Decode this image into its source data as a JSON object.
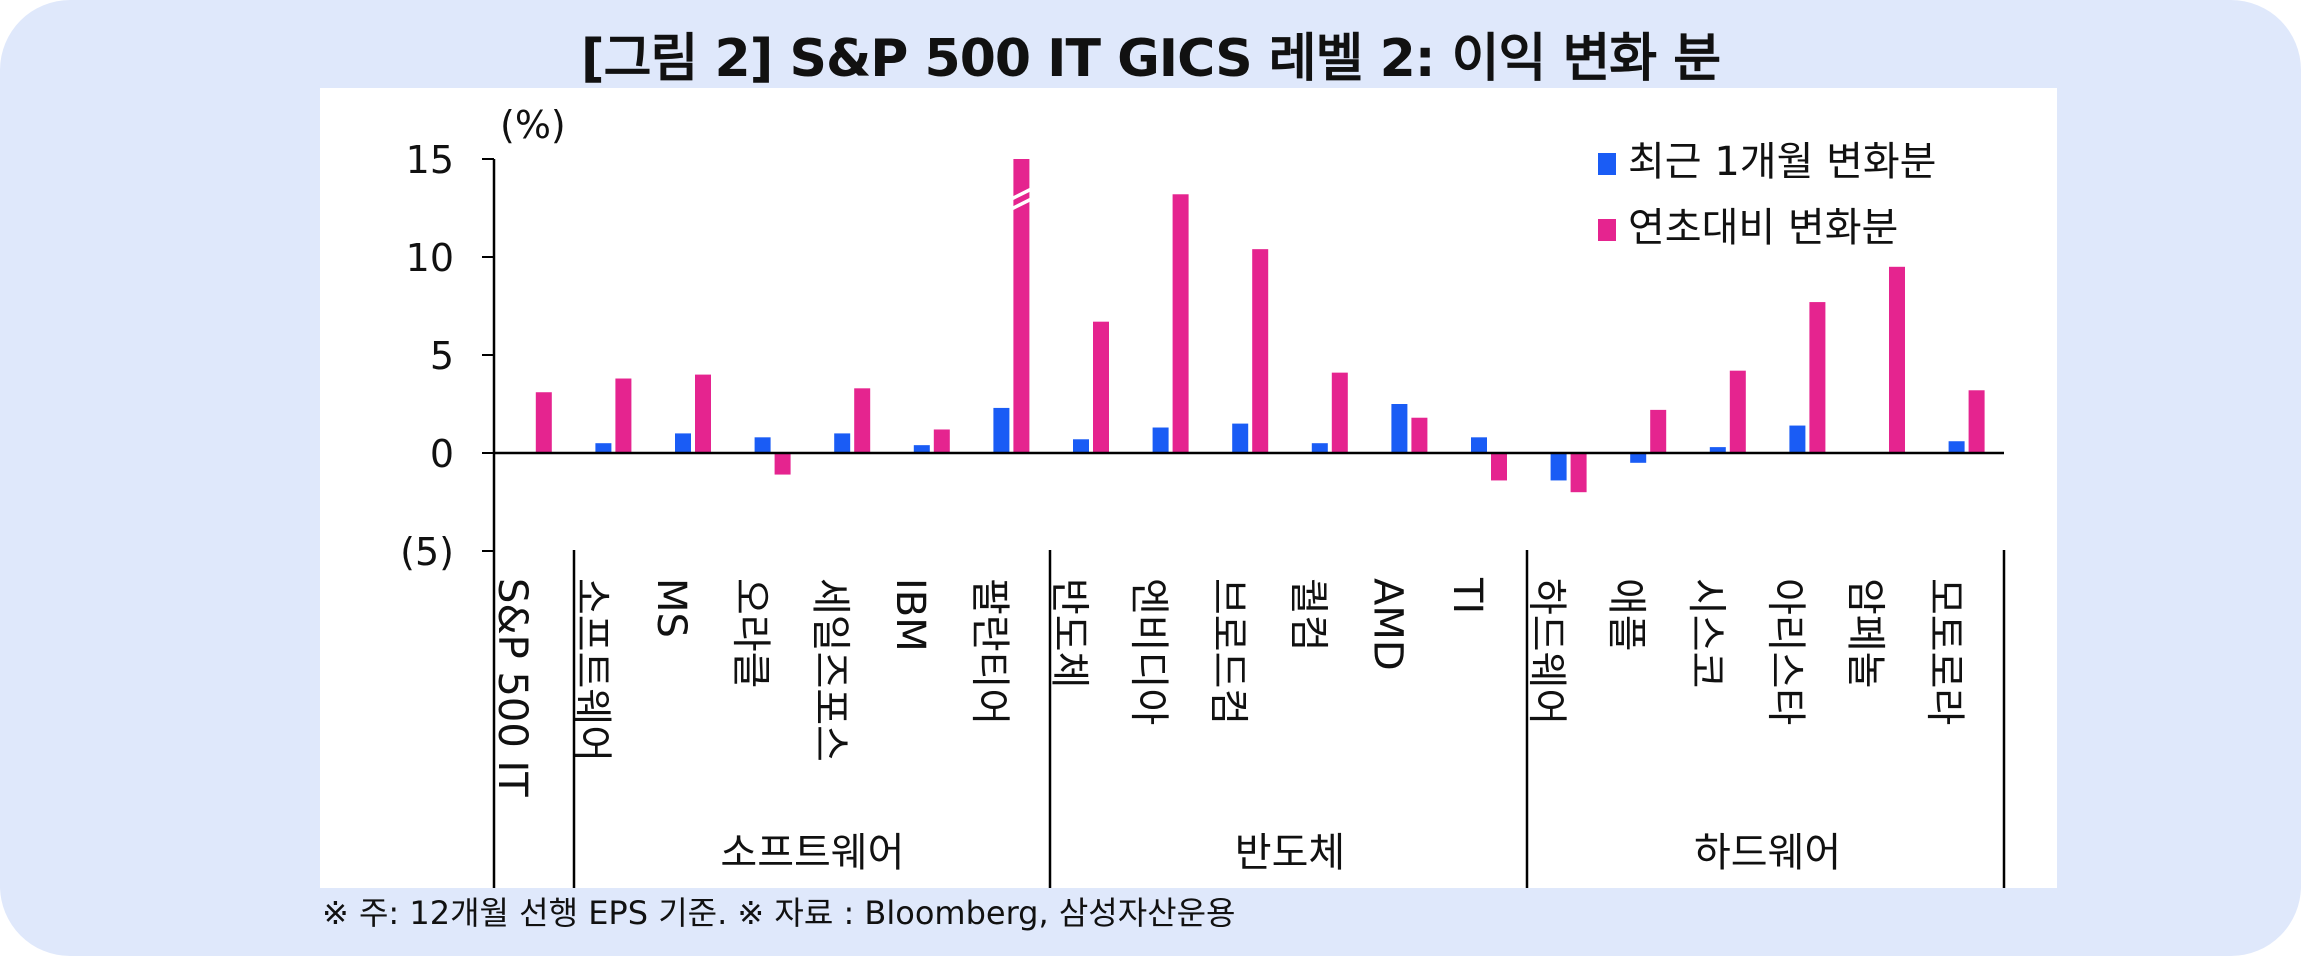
{
  "title": "[그림 2] S&P 500 IT GICS 레벨 2: 이익 변화 분",
  "footnote": "※ 주: 12개월 선행 EPS 기준. ※ 자료 : Bloomberg, 삼성자산운용",
  "colors": {
    "series1": "#1a5cf5",
    "series2": "#e5248f",
    "background": "#dfe8fb",
    "axis": "#000000"
  },
  "chart_data": {
    "type": "bar",
    "ylabel": "(%)",
    "ylim": [
      -5,
      15
    ],
    "yticks": [
      15,
      10,
      5,
      0,
      -5
    ],
    "ytick_labels": [
      "15",
      "10",
      "5",
      "0",
      "(5)"
    ],
    "categories": [
      "S&P 500 IT",
      "소프트웨어",
      "MS",
      "오라클",
      "세일즈포스",
      "IBM",
      "팔란티어",
      "반도체",
      "엔비디아",
      "브로드컴",
      "퀄컴",
      "AMD",
      "TI",
      "하드웨어",
      "애플",
      "시스코",
      "아리스타",
      "암페놀",
      "모토로라"
    ],
    "groups": [
      {
        "label": "소프트웨어",
        "start": 1,
        "end": 6
      },
      {
        "label": "반도체",
        "start": 7,
        "end": 12
      },
      {
        "label": "하드웨어",
        "start": 13,
        "end": 18
      }
    ],
    "series": [
      {
        "name": "최근 1개월 변화분",
        "values": [
          0.0,
          0.5,
          1.0,
          0.8,
          1.0,
          0.4,
          2.3,
          0.7,
          1.3,
          1.5,
          0.5,
          2.5,
          0.8,
          -1.4,
          -0.5,
          0.3,
          1.4,
          0.0,
          0.6
        ]
      },
      {
        "name": "연초대비 변화분",
        "values": [
          3.1,
          3.8,
          4.0,
          -1.1,
          3.3,
          1.2,
          15.0,
          6.7,
          13.2,
          10.4,
          4.1,
          1.8,
          -1.4,
          -2.0,
          2.2,
          4.2,
          7.7,
          9.5,
          3.2
        ]
      }
    ],
    "truncated_bars": [
      {
        "series": 1,
        "category": 6
      }
    ],
    "legend_position": "top-right",
    "grid": false
  }
}
